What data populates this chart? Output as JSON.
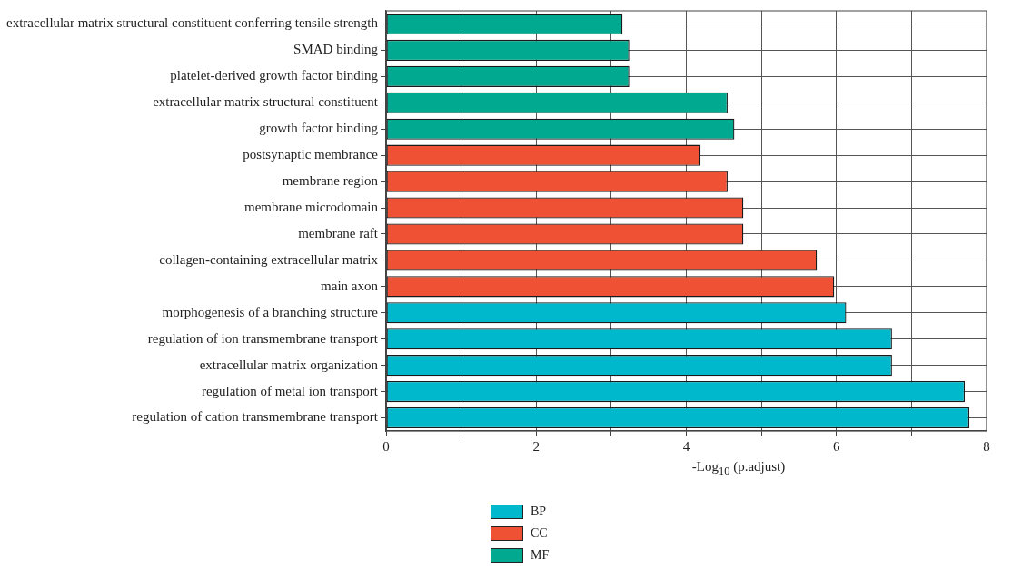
{
  "chart_data": {
    "type": "bar",
    "orientation": "horizontal",
    "stacked": true,
    "xlabel": "-Log$_{10}$ (p.adjust)",
    "categories": [
      "extracellular matrix structural constituent conferring tensile strength",
      "SMAD binding",
      "platelet-derived growth factor binding",
      "extracellular matrix structural constituent",
      "growth factor binding",
      "postsynaptic membrance",
      "membrane region",
      "membrane microdomain",
      "membrane raft",
      "collagen-containing extracellular matrix",
      "main axon",
      "morphogenesis of a branching structure",
      "regulation of ion transmembrane transport",
      "extracellular matrix organization",
      "regulation of metal ion transport",
      "regulation of cation transmembrane transport"
    ],
    "series": [
      {
        "name": "BP",
        "color": "#00b8cc",
        "values": [
          null,
          null,
          null,
          null,
          null,
          null,
          null,
          null,
          null,
          null,
          null,
          6.13,
          6.74,
          6.74,
          7.71,
          7.77
        ]
      },
      {
        "name": "CC",
        "color": "#ee5133",
        "values": [
          null,
          null,
          null,
          null,
          null,
          4.19,
          4.55,
          4.76,
          4.76,
          5.74,
          5.97,
          null,
          null,
          null,
          null,
          null
        ]
      },
      {
        "name": "MF",
        "color": "#00a98f",
        "values": [
          3.15,
          3.24,
          3.24,
          4.55,
          4.64,
          null,
          null,
          null,
          null,
          null,
          null,
          null,
          null,
          null,
          null,
          null
        ]
      }
    ],
    "xlim": [
      0,
      8
    ],
    "xticks": [
      0,
      {
        "value": 1,
        "label": null
      },
      2,
      {
        "value": 3,
        "label": null
      },
      4,
      {
        "value": 5,
        "label": null
      },
      6,
      {
        "value": 7,
        "label": null
      },
      8
    ],
    "grid": true,
    "legend": "bottom"
  }
}
